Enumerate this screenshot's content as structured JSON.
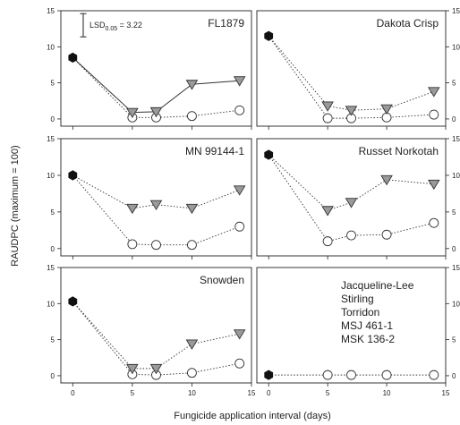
{
  "chart_data": {
    "type": "scatter",
    "ylabel": "RAUDPC (maximum = 100)",
    "xlabel": "Fungicide application interval (days)",
    "xlim": [
      -1,
      15
    ],
    "ylim": [
      -1,
      15
    ],
    "x_ticks": [
      "0",
      "5",
      "10",
      "15"
    ],
    "y_ticks": [
      "0",
      "5",
      "10",
      "15"
    ],
    "lsd_label": "LSD",
    "lsd_subscript": "0.05",
    "lsd_suffix": " = 3.22",
    "lsd_value": 3.22,
    "colors": {
      "filled_control": "#111111",
      "triangle_fill": "#9a9a9a",
      "circle_fill": "#ffffff",
      "line": "#333333"
    },
    "panels": [
      {
        "labels": [
          "FL1879"
        ],
        "control": {
          "x": 0,
          "y": 8.5
        },
        "triangles": {
          "x": [
            5,
            7,
            10,
            14
          ],
          "y": [
            0.9,
            1.0,
            4.8,
            5.3
          ],
          "solid_line": true
        },
        "circles": {
          "x": [
            5,
            7,
            10,
            14
          ],
          "y": [
            0.2,
            0.2,
            0.4,
            1.2
          ]
        },
        "show_lsd": true
      },
      {
        "labels": [
          "Dakota Crisp"
        ],
        "control": {
          "x": 0,
          "y": 11.5
        },
        "triangles": {
          "x": [
            5,
            7,
            10,
            14
          ],
          "y": [
            1.8,
            1.2,
            1.4,
            3.8
          ],
          "solid_line": false
        },
        "circles": {
          "x": [
            5,
            7,
            10,
            14
          ],
          "y": [
            0.1,
            0.1,
            0.2,
            0.6
          ]
        },
        "show_lsd": false
      },
      {
        "labels": [
          "MN 99144-1"
        ],
        "control": {
          "x": 0,
          "y": 10.0
        },
        "triangles": {
          "x": [
            5,
            7,
            10,
            14
          ],
          "y": [
            5.5,
            6.0,
            5.5,
            8.0
          ],
          "solid_line": false
        },
        "circles": {
          "x": [
            5,
            7,
            10,
            14
          ],
          "y": [
            0.6,
            0.5,
            0.5,
            3.0
          ]
        },
        "show_lsd": false
      },
      {
        "labels": [
          "Russet Norkotah"
        ],
        "control": {
          "x": 0,
          "y": 12.8
        },
        "triangles": {
          "x": [
            5,
            7,
            10,
            14
          ],
          "y": [
            5.2,
            6.3,
            9.4,
            8.8
          ],
          "solid_line": false
        },
        "circles": {
          "x": [
            5,
            7,
            10,
            14
          ],
          "y": [
            1.0,
            1.8,
            1.9,
            3.5
          ]
        },
        "show_lsd": false
      },
      {
        "labels": [
          "Snowden"
        ],
        "control": {
          "x": 0,
          "y": 10.3
        },
        "triangles": {
          "x": [
            5,
            7,
            10,
            14
          ],
          "y": [
            1.0,
            1.0,
            4.4,
            5.8
          ],
          "solid_line": false
        },
        "circles": {
          "x": [
            5,
            7,
            10,
            14
          ],
          "y": [
            0.2,
            0.1,
            0.4,
            1.7
          ]
        },
        "show_lsd": false
      },
      {
        "labels": [
          "Jacqueline-Lee",
          "Stirling",
          "Torridon",
          "MSJ 461-1",
          "MSK 136-2"
        ],
        "control": {
          "x": 0,
          "y": 0.1
        },
        "triangles": {
          "x": [],
          "y": [],
          "solid_line": false
        },
        "circles": {
          "x": [
            5,
            7,
            10,
            14
          ],
          "y": [
            0.1,
            0.1,
            0.1,
            0.1
          ]
        },
        "show_lsd": false
      }
    ]
  }
}
